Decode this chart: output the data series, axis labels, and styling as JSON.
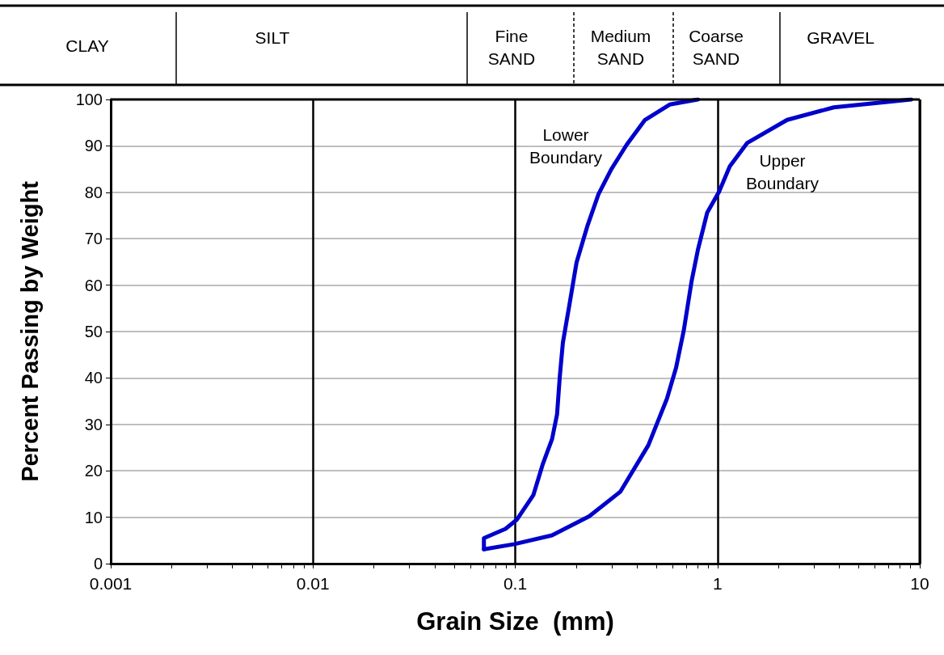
{
  "chart_data": {
    "type": "line",
    "xlabel": "Grain Size  (mm)",
    "ylabel": "Percent Passing by Weight",
    "log": "x",
    "xlim": [
      0.001,
      10
    ],
    "xticks": [
      0.001,
      0.01,
      0.1,
      1,
      10
    ],
    "ylim": [
      0,
      100
    ],
    "yticks": [
      0,
      10,
      20,
      30,
      40,
      50,
      60,
      70,
      80,
      90,
      100
    ],
    "grid": true,
    "marker": "none",
    "line_style": "solid",
    "series": [
      {
        "color": "#0000cc",
        "x": [
          0.8,
          0.58,
          0.438,
          0.355,
          0.298,
          0.258,
          0.228,
          0.201,
          0.185,
          0.172,
          0.166,
          0.161,
          0.152,
          0.137,
          0.123,
          0.102,
          0.0895,
          0.07,
          0.07
        ],
        "values": [
          100,
          98.9,
          95.6,
          90.2,
          84.9,
          79.6,
          72.9,
          64.9,
          55.6,
          47.6,
          40.2,
          32.2,
          26.8,
          21.5,
          14.8,
          9.5,
          7.5,
          5.5,
          3.1
        ]
      },
      {
        "color": "#0000cc",
        "x": [
          0.07,
          0.099,
          0.152,
          0.232,
          0.331,
          0.455,
          0.562,
          0.624,
          0.681,
          0.745,
          0.8,
          0.889,
          1.02,
          1.15,
          1.4,
          2.21,
          3.76,
          9.08
        ],
        "values": [
          3.1,
          4.2,
          6.1,
          10.2,
          15.5,
          25.5,
          35.5,
          42.2,
          50.2,
          60.9,
          67.6,
          75.6,
          80.2,
          85.6,
          90.6,
          95.6,
          98.3,
          100
        ]
      }
    ],
    "annotations": [
      "CLAY",
      "SILT",
      "Fine\nSAND",
      "Medium\nSAND",
      "Coarse\nSAND",
      "GRAVEL",
      "Lower\nBoundary",
      "Upper\nBoundary"
    ]
  }
}
